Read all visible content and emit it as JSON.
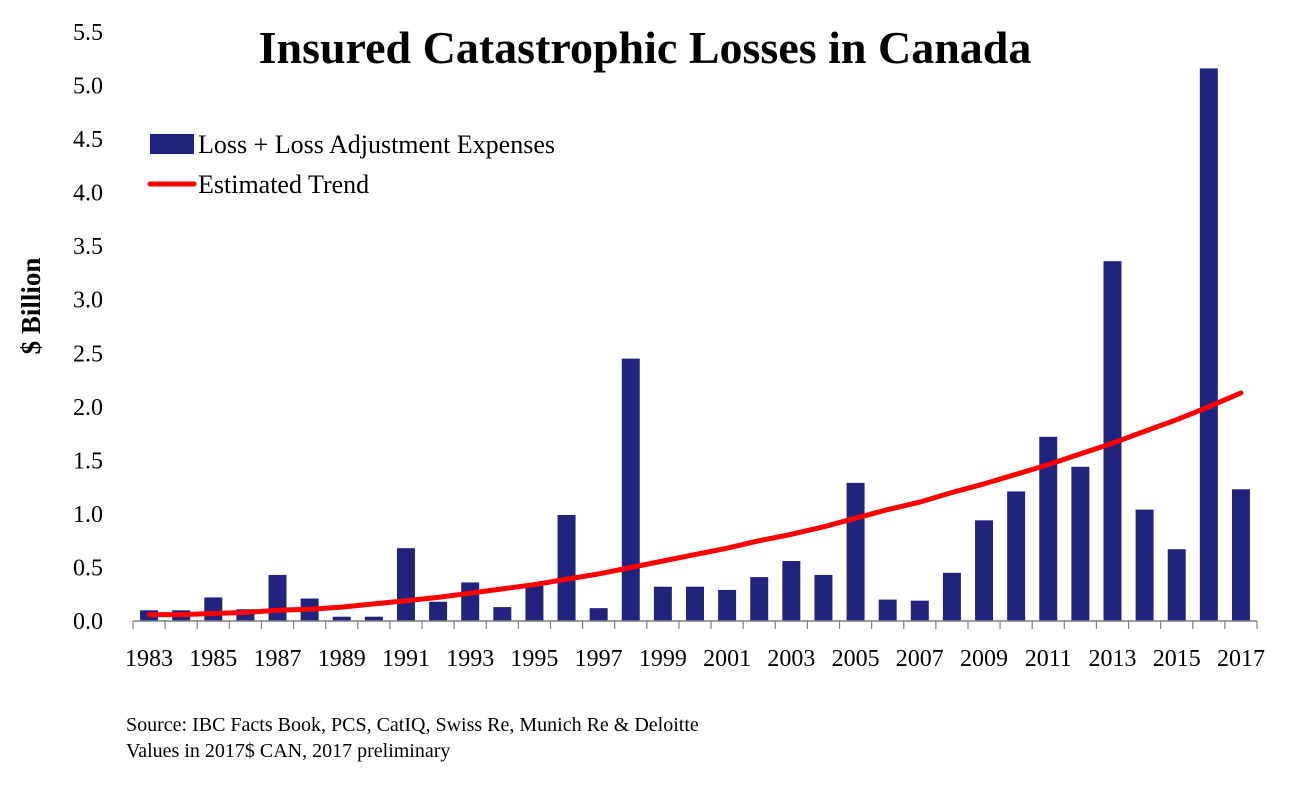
{
  "chart_data": {
    "type": "bar",
    "title": "Insured Catastrophic Losses in Canada",
    "ylabel": "$ Billion",
    "xlabel": "",
    "ylim": [
      0,
      5.5
    ],
    "yticks": [
      "0.0",
      "0.5",
      "1.0",
      "1.5",
      "2.0",
      "2.5",
      "3.0",
      "3.5",
      "4.0",
      "4.5",
      "5.0",
      "5.5"
    ],
    "x_tick_labels": [
      "1983",
      "1985",
      "1987",
      "1989",
      "1991",
      "1993",
      "1995",
      "1997",
      "1999",
      "2001",
      "2003",
      "2005",
      "2007",
      "2009",
      "2011",
      "2013",
      "2015",
      "2017"
    ],
    "categories": [
      "1983",
      "1984",
      "1985",
      "1986",
      "1987",
      "1988",
      "1989",
      "1990",
      "1991",
      "1992",
      "1993",
      "1994",
      "1995",
      "1996",
      "1997",
      "1998",
      "1999",
      "2000",
      "2001",
      "2002",
      "2003",
      "2004",
      "2005",
      "2006",
      "2007",
      "2008",
      "2009",
      "2010",
      "2011",
      "2012",
      "2013",
      "2014",
      "2015",
      "2016",
      "2017"
    ],
    "series": [
      {
        "name": "Loss + Loss Adjustment Expenses",
        "type": "bar",
        "color": "#21247f",
        "values": [
          0.1,
          0.1,
          0.22,
          0.11,
          0.43,
          0.21,
          0.04,
          0.04,
          0.68,
          0.18,
          0.36,
          0.13,
          0.33,
          0.99,
          0.12,
          2.45,
          0.32,
          0.32,
          0.29,
          0.41,
          0.56,
          0.43,
          1.29,
          0.2,
          0.19,
          0.45,
          0.94,
          1.21,
          1.72,
          1.44,
          3.36,
          1.04,
          0.67,
          5.16,
          1.23
        ]
      },
      {
        "name": "Estimated Trend",
        "type": "line",
        "color": "#ff0000",
        "values": [
          0.06,
          0.06,
          0.07,
          0.08,
          0.1,
          0.11,
          0.13,
          0.16,
          0.19,
          0.22,
          0.26,
          0.3,
          0.34,
          0.39,
          0.44,
          0.5,
          0.56,
          0.62,
          0.68,
          0.75,
          0.81,
          0.88,
          0.96,
          1.04,
          1.11,
          1.2,
          1.28,
          1.37,
          1.46,
          1.56,
          1.66,
          1.77,
          1.88,
          2.0,
          2.13
        ]
      }
    ],
    "legend": {
      "position": "top-left",
      "entries": [
        "Loss + Loss Adjustment Expenses",
        "Estimated Trend"
      ]
    },
    "grid": false
  },
  "footer": {
    "source_line1": "Source: IBC  Facts Book, PCS,  CatIQ, Swiss Re, Munich Re & Deloitte",
    "source_line2": "Values in 2017$ CAN, 2017 preliminary"
  }
}
